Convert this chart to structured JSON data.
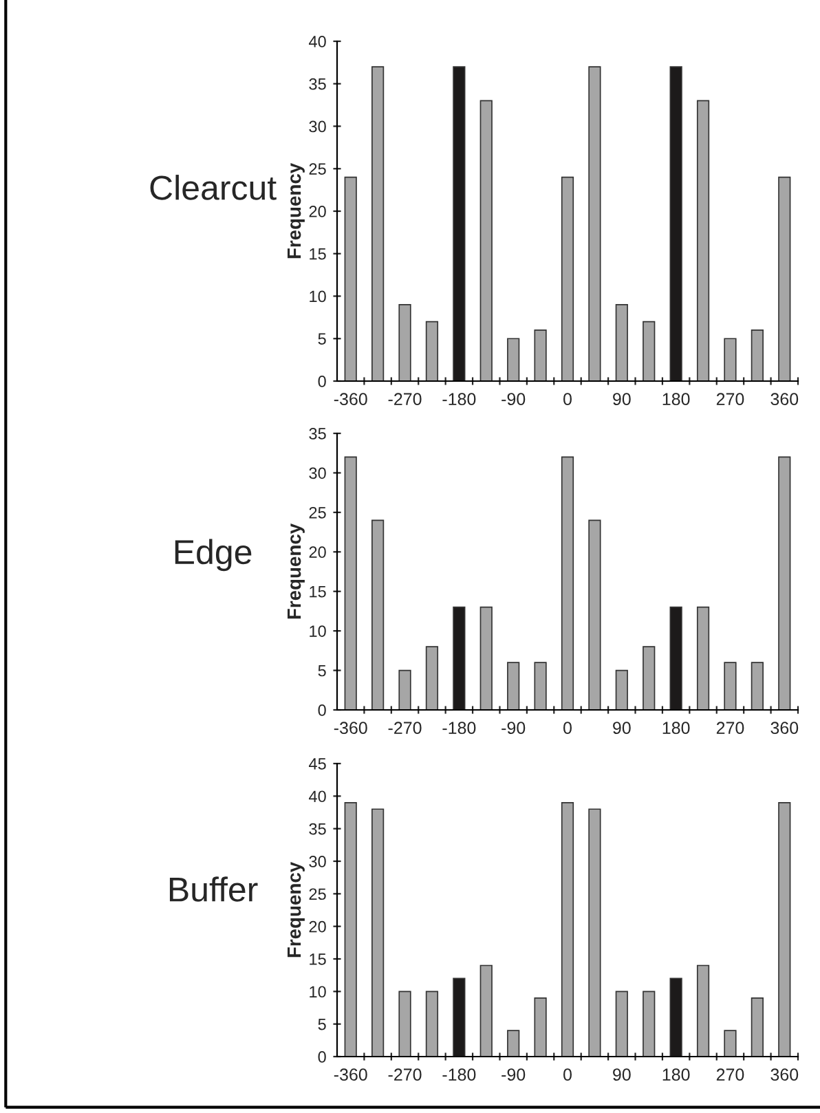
{
  "chart_data": [
    {
      "type": "bar",
      "title": "Clearcut",
      "ylabel": "Frequency",
      "categories": [
        "-360",
        null,
        "-270",
        null,
        "-180",
        null,
        "-90",
        null,
        "0",
        null,
        "90",
        null,
        "180",
        null,
        "270",
        null,
        "360"
      ],
      "values": [
        24,
        37,
        9,
        7,
        37,
        33,
        5,
        6,
        24,
        37,
        9,
        7,
        37,
        33,
        5,
        6,
        24
      ],
      "colors": [
        "#a6a6a6",
        "#a6a6a6",
        "#a6a6a6",
        "#a6a6a6",
        "#1c1a1a",
        "#a6a6a6",
        "#a6a6a6",
        "#a6a6a6",
        "#a6a6a6",
        "#a6a6a6",
        "#a6a6a6",
        "#a6a6a6",
        "#1c1a1a",
        "#a6a6a6",
        "#a6a6a6",
        "#a6a6a6",
        "#a6a6a6"
      ],
      "ylim": [
        0,
        40
      ],
      "yticks": [
        0,
        5,
        10,
        15,
        20,
        25,
        30,
        35,
        40
      ]
    },
    {
      "type": "bar",
      "title": "Edge",
      "ylabel": "Frequency",
      "categories": [
        "-360",
        null,
        "-270",
        null,
        "-180",
        null,
        "-90",
        null,
        "0",
        null,
        "90",
        null,
        "180",
        null,
        "270",
        null,
        "360"
      ],
      "values": [
        32,
        24,
        5,
        8,
        13,
        13,
        6,
        6,
        32,
        24,
        5,
        8,
        13,
        13,
        6,
        6,
        32
      ],
      "colors": [
        "#a6a6a6",
        "#a6a6a6",
        "#a6a6a6",
        "#a6a6a6",
        "#1c1a1a",
        "#a6a6a6",
        "#a6a6a6",
        "#a6a6a6",
        "#a6a6a6",
        "#a6a6a6",
        "#a6a6a6",
        "#a6a6a6",
        "#1c1a1a",
        "#a6a6a6",
        "#a6a6a6",
        "#a6a6a6",
        "#a6a6a6"
      ],
      "ylim": [
        0,
        35
      ],
      "yticks": [
        0,
        5,
        10,
        15,
        20,
        25,
        30,
        35
      ]
    },
    {
      "type": "bar",
      "title": "Buffer",
      "ylabel": "Frequency",
      "categories": [
        "-360",
        null,
        "-270",
        null,
        "-180",
        null,
        "-90",
        null,
        "0",
        null,
        "90",
        null,
        "180",
        null,
        "270",
        null,
        "360"
      ],
      "values": [
        39,
        38,
        10,
        10,
        12,
        14,
        4,
        9,
        39,
        38,
        10,
        10,
        12,
        14,
        4,
        9,
        39
      ],
      "colors": [
        "#a6a6a6",
        "#a6a6a6",
        "#a6a6a6",
        "#a6a6a6",
        "#1c1a1a",
        "#a6a6a6",
        "#a6a6a6",
        "#a6a6a6",
        "#a6a6a6",
        "#a6a6a6",
        "#a6a6a6",
        "#a6a6a6",
        "#1c1a1a",
        "#a6a6a6",
        "#a6a6a6",
        "#a6a6a6",
        "#a6a6a6"
      ],
      "ylim": [
        0,
        45
      ],
      "yticks": [
        0,
        5,
        10,
        15,
        20,
        25,
        30,
        35,
        40,
        45
      ]
    }
  ]
}
